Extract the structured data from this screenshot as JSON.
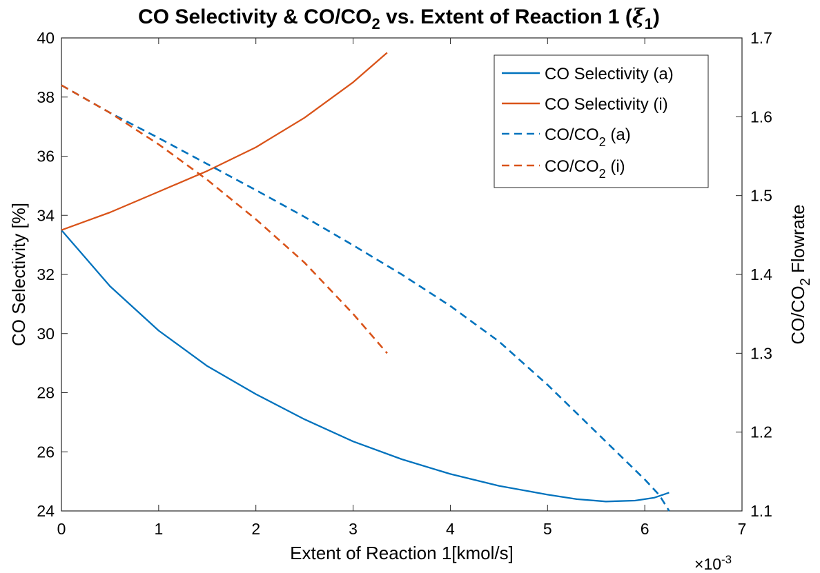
{
  "chart_data": {
    "type": "line",
    "title": {
      "main": "CO Selectivity & CO/CO",
      "sub1": "2",
      "mid": " vs. Extent of Reaction 1 (",
      "xi": "ξ",
      "sub2": "1",
      "end": ")"
    },
    "xlabel": "Extent of Reaction 1[kmol/s]",
    "ylabel_left": "CO Selectivity [%]",
    "ylabel_right": {
      "pre": "CO/CO",
      "sub": "2",
      "post": " Flowrate"
    },
    "x_exponent": {
      "base": "×10",
      "power": "-3"
    },
    "xlim": [
      0,
      7
    ],
    "ylim_left": [
      24,
      40
    ],
    "ylim_right": [
      1.1,
      1.7
    ],
    "xticks": [
      "0",
      "1",
      "2",
      "3",
      "4",
      "5",
      "6",
      "7"
    ],
    "yticks_left": [
      "24",
      "26",
      "28",
      "30",
      "32",
      "34",
      "36",
      "38",
      "40"
    ],
    "yticks_right": [
      "1.1",
      "1.2",
      "1.3",
      "1.4",
      "1.5",
      "1.6",
      "1.7"
    ],
    "legend_position": "top-right",
    "grid": false,
    "series": [
      {
        "name": "CO Selectivity (a)",
        "legend": {
          "pre": "CO Selectivity (a)",
          "sub": "",
          "post": ""
        },
        "axis": "left",
        "color": "#0072BD",
        "dash": "solid",
        "x": [
          0,
          0.5,
          1,
          1.5,
          2,
          2.5,
          3,
          3.5,
          4,
          4.5,
          5,
          5.3,
          5.6,
          5.9,
          6.1,
          6.25
        ],
        "y": [
          33.5,
          31.6,
          30.1,
          28.9,
          27.95,
          27.1,
          26.35,
          25.75,
          25.25,
          24.85,
          24.55,
          24.4,
          24.32,
          24.35,
          24.45,
          24.62
        ]
      },
      {
        "name": "CO Selectivity (i)",
        "legend": {
          "pre": "CO Selectivity (i)",
          "sub": "",
          "post": ""
        },
        "axis": "left",
        "color": "#D95319",
        "dash": "solid",
        "x": [
          0,
          0.5,
          1,
          1.5,
          2,
          2.5,
          3,
          3.35
        ],
        "y": [
          33.5,
          34.1,
          34.8,
          35.5,
          36.3,
          37.3,
          38.5,
          39.5
        ]
      },
      {
        "name": "CO/CO2 (a)",
        "legend": {
          "pre": "CO/CO",
          "sub": "2",
          "post": " (a)"
        },
        "axis": "right",
        "color": "#0072BD",
        "dash": "dashed",
        "x": [
          0,
          0.5,
          1,
          1.5,
          2,
          2.5,
          3,
          3.5,
          4,
          4.5,
          5,
          5.5,
          6,
          6.15,
          6.25
        ],
        "y": [
          1.64,
          1.605,
          1.573,
          1.54,
          1.507,
          1.473,
          1.437,
          1.4,
          1.36,
          1.315,
          1.26,
          1.2,
          1.14,
          1.12,
          1.1
        ]
      },
      {
        "name": "CO/CO2 (i)",
        "legend": {
          "pre": "CO/CO",
          "sub": "2",
          "post": " (i)"
        },
        "axis": "right",
        "color": "#D95319",
        "dash": "dashed",
        "x": [
          0,
          0.5,
          1,
          1.5,
          2,
          2.5,
          3,
          3.35
        ],
        "y": [
          1.64,
          1.605,
          1.565,
          1.52,
          1.47,
          1.415,
          1.35,
          1.3
        ]
      }
    ]
  }
}
